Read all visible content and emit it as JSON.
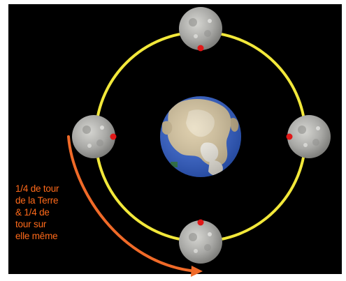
{
  "caption": {
    "lines": [
      "1/4 de tour",
      "de la Terre",
      "& 1/4 de",
      "tour sur",
      "elle même"
    ]
  },
  "colors": {
    "background": "#000000",
    "frame": "#ffffff",
    "orbit": "#f2e83a",
    "arrow": "#f06a28",
    "marker": "#e01818",
    "moon_base": "#a9a9a6",
    "ocean": "#2f5fd0",
    "land": "#d9c7a0"
  },
  "diagram": {
    "central_body": "earth",
    "orbiting_body": "moon",
    "moon_positions": [
      "top",
      "right",
      "bottom",
      "left"
    ],
    "marker_sides": {
      "top": "bottom",
      "right": "left",
      "bottom": "top",
      "left": "right"
    }
  }
}
